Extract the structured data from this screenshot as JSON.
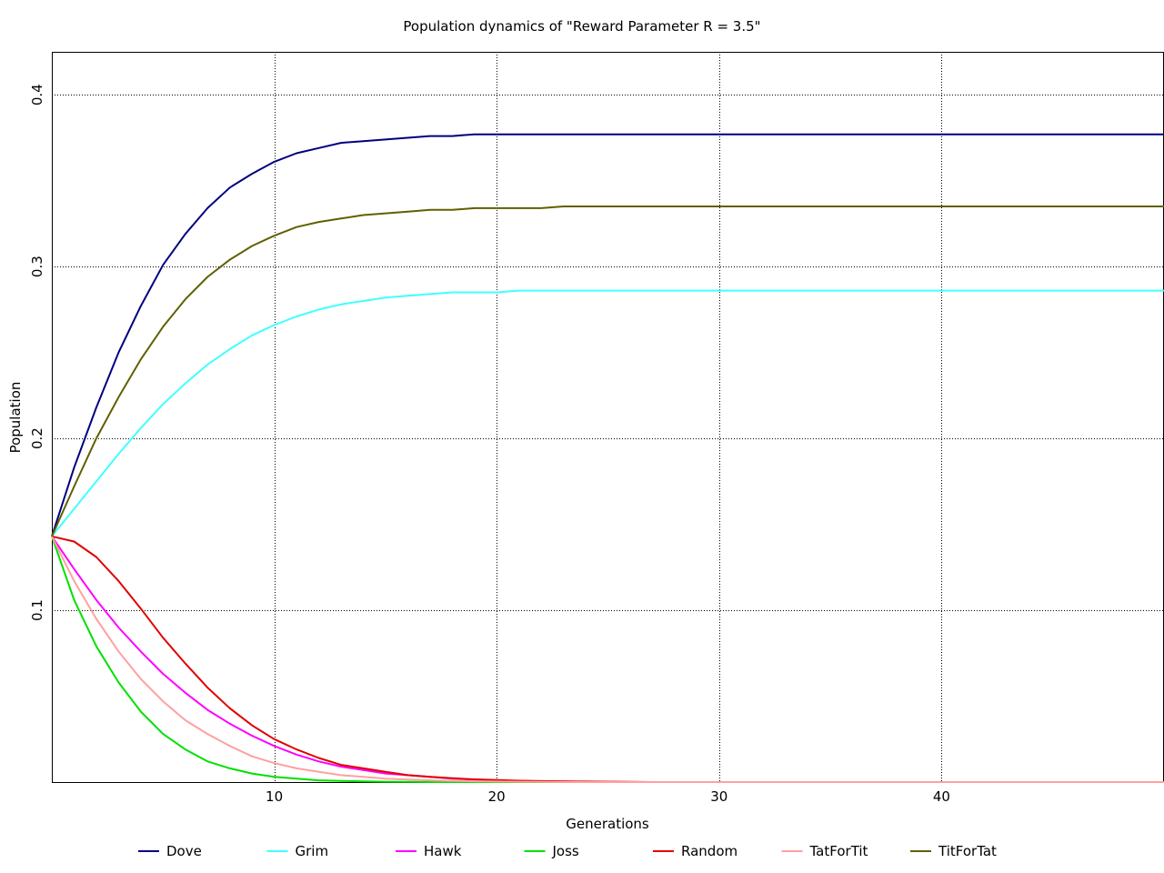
{
  "chart_data": {
    "type": "line",
    "title": "Population dynamics of \"Reward Parameter R = 3.5\"",
    "xlabel": "Generations",
    "ylabel": "Population",
    "xlim": [
      0,
      50
    ],
    "ylim": [
      0,
      0.425
    ],
    "x_ticks": [
      10,
      20,
      30,
      40
    ],
    "y_ticks": [
      0.1,
      0.2,
      0.3,
      0.4
    ],
    "x_tick_labels": [
      "10",
      "20",
      "30",
      "40"
    ],
    "y_tick_labels": [
      "0.1",
      "0.2",
      "0.3",
      "0.4"
    ],
    "grid": true,
    "legend_position": "bottom",
    "x": [
      0,
      1,
      2,
      3,
      4,
      5,
      6,
      7,
      8,
      9,
      10,
      11,
      12,
      13,
      14,
      15,
      16,
      17,
      18,
      19,
      20,
      21,
      22,
      23,
      24,
      25,
      26,
      27,
      28,
      29,
      30,
      31,
      32,
      33,
      34,
      35,
      36,
      37,
      38,
      39,
      40,
      41,
      42,
      43,
      44,
      45,
      46,
      47,
      48,
      49,
      50
    ],
    "series": [
      {
        "name": "Dove",
        "color": "#000080",
        "values": [
          0.143,
          0.183,
          0.218,
          0.25,
          0.277,
          0.301,
          0.319,
          0.334,
          0.346,
          0.354,
          0.361,
          0.366,
          0.369,
          0.372,
          0.373,
          0.374,
          0.375,
          0.376,
          0.376,
          0.377,
          0.377,
          0.377,
          0.377,
          0.377,
          0.377,
          0.377,
          0.377,
          0.377,
          0.377,
          0.377,
          0.377,
          0.377,
          0.377,
          0.377,
          0.377,
          0.377,
          0.377,
          0.377,
          0.377,
          0.377,
          0.377,
          0.377,
          0.377,
          0.377,
          0.377,
          0.377,
          0.377,
          0.377,
          0.377,
          0.377,
          0.377
        ]
      },
      {
        "name": "Grim",
        "color": "#40ffff",
        "values": [
          0.143,
          0.159,
          0.175,
          0.191,
          0.206,
          0.22,
          0.232,
          0.243,
          0.252,
          0.26,
          0.266,
          0.271,
          0.275,
          0.278,
          0.28,
          0.282,
          0.283,
          0.284,
          0.285,
          0.285,
          0.285,
          0.286,
          0.286,
          0.286,
          0.286,
          0.286,
          0.286,
          0.286,
          0.286,
          0.286,
          0.286,
          0.286,
          0.286,
          0.286,
          0.286,
          0.286,
          0.286,
          0.286,
          0.286,
          0.286,
          0.286,
          0.286,
          0.286,
          0.286,
          0.286,
          0.286,
          0.286,
          0.286,
          0.286,
          0.286,
          0.286
        ]
      },
      {
        "name": "Hawk",
        "color": "#ff00ff",
        "values": [
          0.143,
          0.124,
          0.106,
          0.09,
          0.076,
          0.063,
          0.052,
          0.042,
          0.034,
          0.027,
          0.021,
          0.016,
          0.012,
          0.009,
          0.007,
          0.005,
          0.004,
          0.003,
          0.002,
          0.0015,
          0.001,
          0.0007,
          0.0005,
          0.0003,
          0.0002,
          0.0001,
          0,
          0,
          0,
          0,
          0,
          0,
          0,
          0,
          0,
          0,
          0,
          0,
          0,
          0,
          0,
          0,
          0,
          0,
          0,
          0,
          0,
          0,
          0,
          0,
          0
        ]
      },
      {
        "name": "Joss",
        "color": "#00e000",
        "values": [
          0.143,
          0.106,
          0.079,
          0.058,
          0.041,
          0.028,
          0.019,
          0.012,
          0.008,
          0.005,
          0.003,
          0.002,
          0.001,
          0.0007,
          0.0004,
          0.0002,
          0.0001,
          0,
          0,
          0,
          0,
          0,
          0,
          0,
          0,
          0,
          0,
          0,
          0,
          0,
          0,
          0,
          0,
          0,
          0,
          0,
          0,
          0,
          0,
          0,
          0,
          0,
          0,
          0,
          0,
          0,
          0,
          0,
          0,
          0,
          0
        ]
      },
      {
        "name": "Random",
        "color": "#e00000",
        "values": [
          0.143,
          0.14,
          0.131,
          0.117,
          0.101,
          0.084,
          0.069,
          0.055,
          0.043,
          0.033,
          0.025,
          0.019,
          0.014,
          0.01,
          0.008,
          0.006,
          0.004,
          0.003,
          0.0022,
          0.0016,
          0.0012,
          0.0008,
          0.0006,
          0.0004,
          0.0003,
          0.0002,
          0.0001,
          0,
          0,
          0,
          0,
          0,
          0,
          0,
          0,
          0,
          0,
          0,
          0,
          0,
          0,
          0,
          0,
          0,
          0,
          0,
          0,
          0,
          0,
          0,
          0
        ]
      },
      {
        "name": "TatForTit",
        "color": "#ffa0a0",
        "values": [
          0.143,
          0.117,
          0.095,
          0.076,
          0.06,
          0.047,
          0.036,
          0.028,
          0.021,
          0.015,
          0.011,
          0.008,
          0.006,
          0.004,
          0.003,
          0.002,
          0.0015,
          0.001,
          0.0007,
          0.0005,
          0.0003,
          0.0002,
          0.0001,
          0,
          0,
          0,
          0,
          0,
          0,
          0,
          0,
          0,
          0,
          0,
          0,
          0,
          0,
          0,
          0,
          0,
          0,
          0,
          0,
          0,
          0,
          0,
          0,
          0,
          0,
          0,
          0
        ]
      },
      {
        "name": "TitForTat",
        "color": "#606000",
        "values": [
          0.143,
          0.172,
          0.2,
          0.224,
          0.246,
          0.265,
          0.281,
          0.294,
          0.304,
          0.312,
          0.318,
          0.323,
          0.326,
          0.328,
          0.33,
          0.331,
          0.332,
          0.333,
          0.333,
          0.334,
          0.334,
          0.334,
          0.334,
          0.335,
          0.335,
          0.335,
          0.335,
          0.335,
          0.335,
          0.335,
          0.335,
          0.335,
          0.335,
          0.335,
          0.335,
          0.335,
          0.335,
          0.335,
          0.335,
          0.335,
          0.335,
          0.335,
          0.335,
          0.335,
          0.335,
          0.335,
          0.335,
          0.335,
          0.335,
          0.335,
          0.335
        ]
      }
    ]
  }
}
